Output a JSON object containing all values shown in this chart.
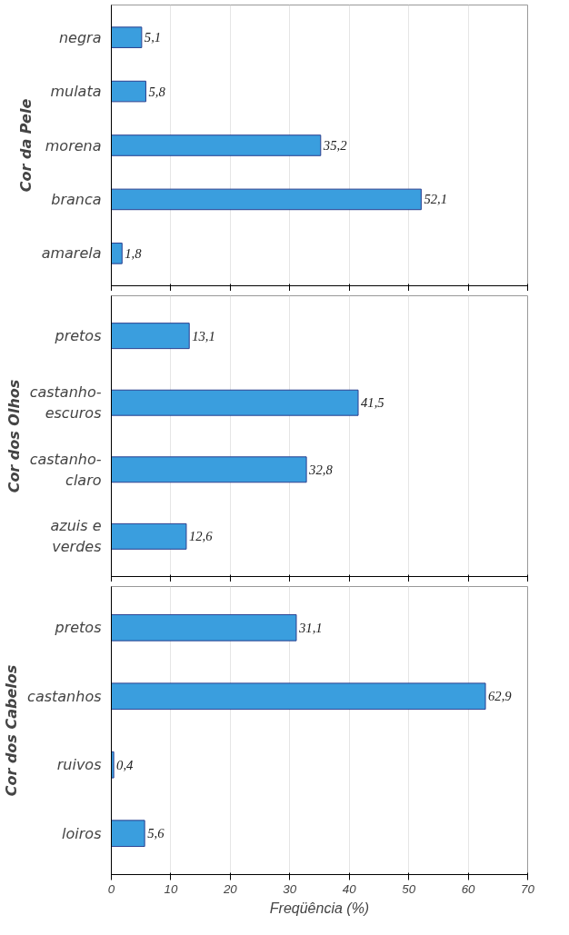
{
  "chart_data": [
    {
      "type": "bar",
      "orientation": "horizontal",
      "ylabel": "Cor da Pele",
      "categories": [
        "negra",
        "mulata",
        "morena",
        "branca",
        "amarela"
      ],
      "values": [
        5.1,
        5.8,
        35.2,
        52.1,
        1.8
      ],
      "value_labels": [
        "5,1",
        "5,8",
        "35,2",
        "52,1",
        "1,8"
      ],
      "color": "#3a9ede",
      "xlim": [
        0,
        70
      ],
      "xticks": [
        0,
        10,
        20,
        30,
        40,
        50,
        60,
        70
      ],
      "grid": "x",
      "tick_labels": "y"
    },
    {
      "type": "bar",
      "orientation": "horizontal",
      "ylabel": "Cor dos Olhos",
      "categories": [
        "pretos",
        "castanho-\nescuros",
        "castanho-\nclaro",
        "azuis e\nverdes"
      ],
      "values": [
        13.1,
        41.5,
        32.8,
        12.6
      ],
      "value_labels": [
        "13,1",
        "41,5",
        "32,8",
        "12,6"
      ],
      "color": "#3a9ede",
      "xlim": [
        0,
        70
      ],
      "xticks": [
        0,
        10,
        20,
        30,
        40,
        50,
        60,
        70
      ],
      "grid": "x",
      "tick_labels": "y"
    },
    {
      "type": "bar",
      "orientation": "horizontal",
      "ylabel": "Cor dos Cabelos",
      "xlabel": "Freqüência (%)",
      "categories": [
        "pretos",
        "castanhos",
        "ruivos",
        "loiros"
      ],
      "values": [
        31.1,
        62.9,
        0.4,
        5.6
      ],
      "value_labels": [
        "31,1",
        "62,9",
        "0,4",
        "5,6"
      ],
      "color": "#3a9ede",
      "xlim": [
        0,
        70
      ],
      "xticks": [
        0,
        10,
        20,
        30,
        40,
        50,
        60,
        70
      ],
      "grid": "x"
    }
  ]
}
